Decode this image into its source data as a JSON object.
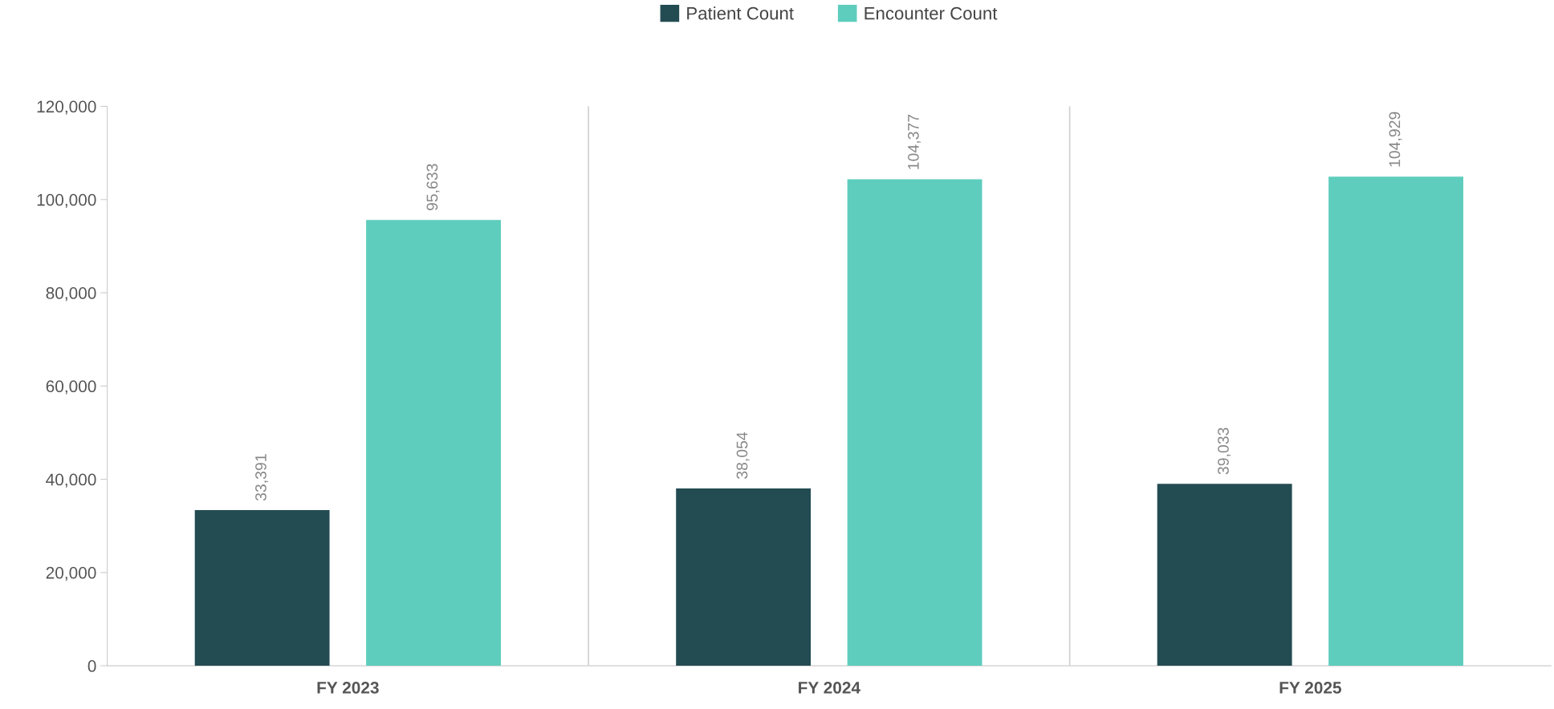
{
  "chart_data": {
    "type": "bar",
    "categories": [
      "FY 2023",
      "FY 2024",
      "FY 2025"
    ],
    "series": [
      {
        "name": "Patient Count",
        "color": "#234b52",
        "values": [
          33391,
          38054,
          39033
        ],
        "value_labels": [
          "33,391",
          "38,054",
          "39,033"
        ]
      },
      {
        "name": "Encounter Count",
        "color": "#5ecdbd",
        "values": [
          95633,
          104377,
          104929
        ],
        "value_labels": [
          "95,633",
          "104,377",
          "104,929"
        ]
      }
    ],
    "ylim": [
      0,
      120000
    ],
    "yticks": [
      {
        "value": 0,
        "label": "0"
      },
      {
        "value": 20000,
        "label": "20,000"
      },
      {
        "value": 40000,
        "label": "40,000"
      },
      {
        "value": 60000,
        "label": "60,000"
      },
      {
        "value": 80000,
        "label": "80,000"
      },
      {
        "value": 100000,
        "label": "100,000"
      },
      {
        "value": 120000,
        "label": "120,000"
      }
    ],
    "grid": "x",
    "legend": "top"
  }
}
